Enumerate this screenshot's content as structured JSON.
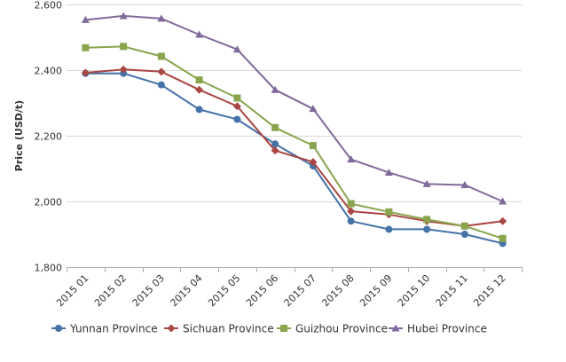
{
  "chart_data": {
    "type": "line",
    "title": "",
    "xlabel": "",
    "ylabel": "Price (USD/t)",
    "categories": [
      "2015 01",
      "2015 02",
      "2015 03",
      "2015 04",
      "2015 05",
      "2015 06",
      "2015 07",
      "2015 08",
      "2015 09",
      "2015 10",
      "2015 11",
      "2015 12"
    ],
    "ylim": [
      1800,
      2600
    ],
    "yticks": [
      1800,
      2000,
      2200,
      2400,
      2600
    ],
    "ytick_labels": [
      "1,800",
      "2,000",
      "2,200",
      "2,400",
      "2,600"
    ],
    "grid": "horizontal",
    "legend_position": "bottom",
    "series": [
      {
        "name": "Yunnan Province",
        "color": "#4572a7",
        "marker": "circle",
        "values": [
          2390,
          2390,
          2355,
          2280,
          2250,
          2175,
          2108,
          1940,
          1915,
          1915,
          1900,
          1872
        ]
      },
      {
        "name": "Sichuan Province",
        "color": "#aa4643",
        "marker": "diamond",
        "values": [
          2392,
          2402,
          2395,
          2340,
          2290,
          2155,
          2120,
          1970,
          1960,
          1940,
          1925,
          1940
        ]
      },
      {
        "name": "Guizhou Province",
        "color": "#89a54e",
        "marker": "square",
        "values": [
          2468,
          2472,
          2442,
          2370,
          2315,
          2225,
          2170,
          1993,
          1968,
          1945,
          1925,
          1887
        ]
      },
      {
        "name": "Hubei Province",
        "color": "#80699b",
        "marker": "triangle",
        "values": [
          2553,
          2565,
          2557,
          2508,
          2463,
          2340,
          2282,
          2128,
          2088,
          2053,
          2050,
          2000
        ]
      }
    ]
  }
}
